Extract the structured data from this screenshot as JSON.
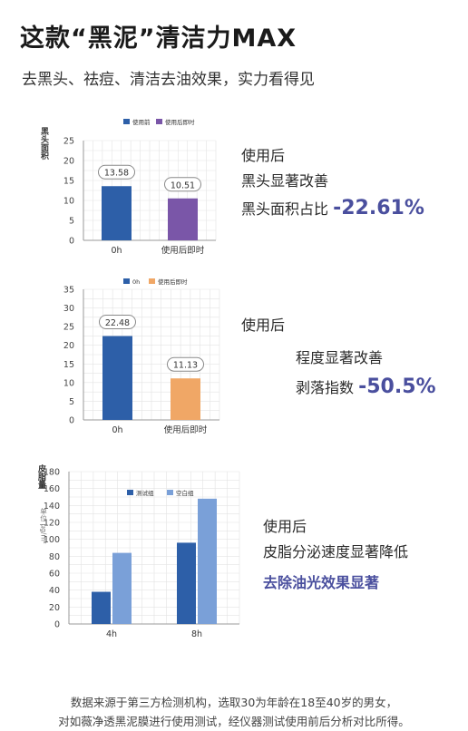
{
  "header": {
    "title": "这款“黑泥”清洁力MAX",
    "subtitle": "去黑头、祛痘、清洁去油效果，实力看得见"
  },
  "panels": [
    {
      "side": {
        "line1": "使用后",
        "line2": "黑头显著改善",
        "line3_prefix": "黑头面积占比",
        "line3_value": "-22.61%"
      }
    },
    {
      "side": {
        "line1": "使用后",
        "line2": "程度显著改善",
        "line3_prefix": "剥落指数",
        "line3_value": "-50.5%"
      }
    },
    {
      "side": {
        "line1": "使用后",
        "line2": "皮脂分泌速度显著降低",
        "line3": "去除油光效果显著"
      }
    }
  ],
  "chart_data": [
    {
      "type": "bar",
      "ylabel": "黑头面积",
      "categories": [
        "0h",
        "使用后即时"
      ],
      "legend": [
        "使用前",
        "使用后即时"
      ],
      "values": [
        13.58,
        10.51
      ],
      "data_labels": [
        "13.58",
        "10.51"
      ],
      "colors": [
        "#2d5fa8",
        "#7a56a8"
      ],
      "ylim": [
        0,
        25
      ],
      "yticks": [
        0,
        5,
        10,
        15,
        20,
        25
      ],
      "grid": true,
      "legend_position": "top"
    },
    {
      "type": "bar",
      "ylabel": "",
      "categories": [
        "0h",
        "使用后即时"
      ],
      "legend": [
        "0h",
        "使用后即时"
      ],
      "values": [
        22.48,
        11.13
      ],
      "data_labels": [
        "22.48",
        "11.13"
      ],
      "colors": [
        "#2d5fa8",
        "#f0a766"
      ],
      "ylim": [
        0,
        35
      ],
      "yticks": [
        0,
        5,
        10,
        15,
        20,
        25,
        30,
        35
      ],
      "grid": true,
      "legend_position": "top"
    },
    {
      "type": "bar",
      "ylabel": "皮脂量",
      "yunit": "单位 μg/m²",
      "categories": [
        "4h",
        "8h"
      ],
      "series": [
        {
          "name": "测试组",
          "values": [
            38,
            96
          ],
          "color": "#2d5fa8"
        },
        {
          "name": "空白组",
          "values": [
            84,
            148
          ],
          "color": "#7aa0d8"
        }
      ],
      "ylim": [
        0,
        180
      ],
      "yticks": [
        0,
        20,
        40,
        60,
        80,
        100,
        120,
        140,
        160,
        180
      ],
      "grid": true,
      "legend_position": "top"
    }
  ],
  "footer": {
    "line1": "数据来源于第三方检测机构，选取30为年龄在18至40岁的男女，",
    "line2": "对如薇净透黑泥膜进行使用测试，经仪器测试使用前后分析对比所得。"
  }
}
